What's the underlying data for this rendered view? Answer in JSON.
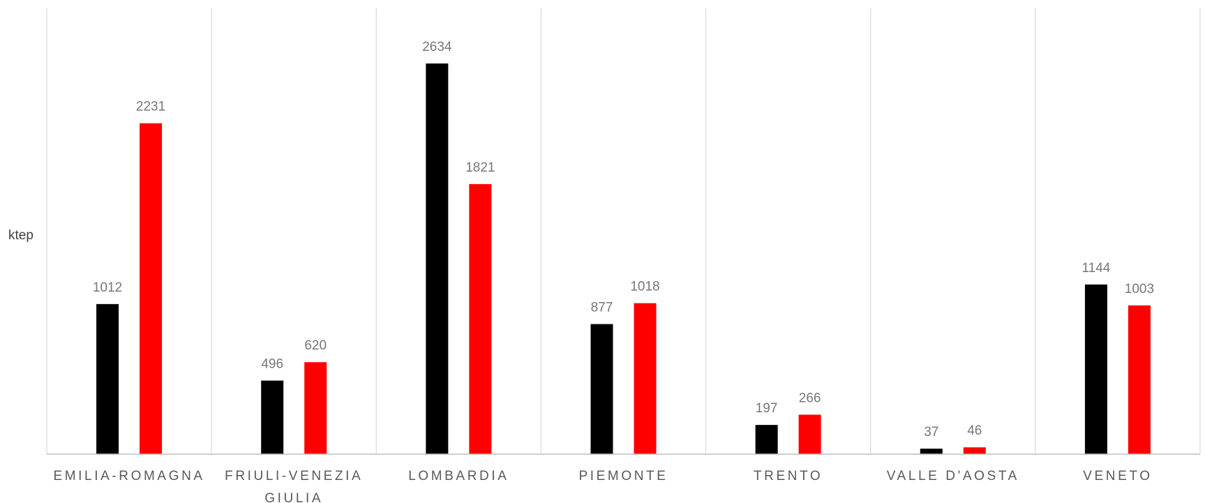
{
  "chart_data": {
    "type": "bar",
    "ylabel": "ktep",
    "title": "",
    "xlabel": "",
    "ylim": [
      0,
      2900
    ],
    "grid": false,
    "categories": [
      [
        "EMILIA-ROMAGNA"
      ],
      [
        "FRIULI-VENEZIA",
        "GIULIA"
      ],
      [
        "LOMBARDIA"
      ],
      [
        "PIEMONTE"
      ],
      [
        "TRENTO"
      ],
      [
        "VALLE D'AOSTA"
      ],
      [
        "VENETO"
      ]
    ],
    "series": [
      {
        "color": "#000000",
        "values": [
          1012,
          496,
          2634,
          877,
          197,
          37,
          1144
        ]
      },
      {
        "color": "#ff0000",
        "values": [
          2231,
          620,
          1821,
          1018,
          266,
          46,
          1003
        ]
      }
    ],
    "colors": {
      "separator": "#d9d9d9",
      "baseline": "#bfbfbf"
    }
  }
}
